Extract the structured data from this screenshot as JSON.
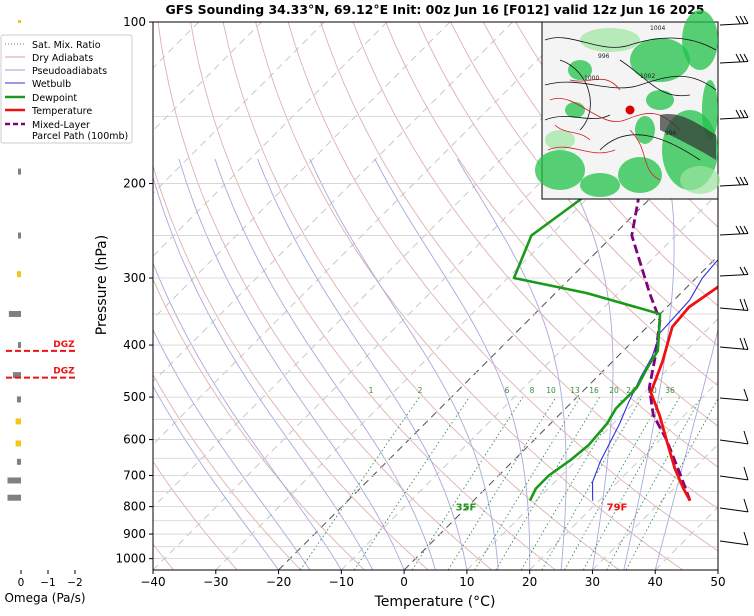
{
  "chart_data": {
    "type": "line",
    "title": "GFS Sounding 34.33°N, 69.12°E Init: 00z Jun 16 [F012] valid 12z Jun 16 2025",
    "xlabel": "Temperature (°C)",
    "ylabel": "Pressure (hPa)",
    "xlim": [
      -40,
      50
    ],
    "ylim": [
      1050,
      100
    ],
    "y_scale": "log",
    "x_ticks": [
      "−40",
      "−30",
      "−20",
      "−10",
      "0",
      "10",
      "20",
      "30",
      "40",
      "50"
    ],
    "y_ticks": [
      "100",
      "200",
      "300",
      "400",
      "500",
      "600",
      "700",
      "800",
      "900",
      "1000"
    ],
    "legend_position": "top-left",
    "legend": [
      {
        "name": "Sat. Mix. Ratio",
        "color": "#2e8b57",
        "style": "dotted"
      },
      {
        "name": "Dry Adiabats",
        "color": "#d9a0a0",
        "style": "solid"
      },
      {
        "name": "Pseudoadiabats",
        "color": "#a0a0d8",
        "style": "solid"
      },
      {
        "name": "Wetbulb",
        "color": "#3030e0",
        "style": "solid"
      },
      {
        "name": "Dewpoint",
        "color": "#1a9a1a",
        "style": "solid"
      },
      {
        "name": "Temperature",
        "color": "#ee1111",
        "style": "solid"
      },
      {
        "name": "Mixed-Layer\nParcel Path (100mb)",
        "color": "#800080",
        "style": "dashed"
      }
    ],
    "series": [
      {
        "name": "Temperature",
        "color": "#ee1111",
        "points": [
          [
            34.5,
            780
          ],
          [
            31.5,
            740
          ],
          [
            27,
            680
          ],
          [
            21,
            600
          ],
          [
            16,
            540
          ],
          [
            11,
            490
          ],
          [
            8,
            430
          ],
          [
            4,
            370
          ],
          [
            3.5,
            340
          ],
          [
            5,
            310
          ],
          [
            4,
            270
          ],
          [
            3,
            245
          ],
          [
            -1,
            215
          ],
          [
            -3,
            190
          ],
          [
            -6,
            165
          ],
          [
            -7,
            145
          ],
          [
            -7.5,
            100
          ]
        ]
      },
      {
        "name": "Dewpoint",
        "color": "#1a9a1a",
        "points": [
          [
            9,
            780
          ],
          [
            8,
            740
          ],
          [
            8,
            700
          ],
          [
            9,
            655
          ],
          [
            9.5,
            615
          ],
          [
            9,
            560
          ],
          [
            8,
            525
          ],
          [
            8,
            480
          ],
          [
            6.5,
            440
          ],
          [
            5.5,
            410
          ],
          [
            0,
            350
          ],
          [
            -15,
            320
          ],
          [
            -29,
            300
          ],
          [
            -33,
            250
          ],
          [
            -30,
            200
          ],
          [
            -28,
            160
          ],
          [
            -25,
            140
          ],
          [
            -19.5,
            100
          ]
        ]
      },
      {
        "name": "Wetbulb",
        "color": "#3030e0",
        "points": [
          [
            19,
            780
          ],
          [
            16,
            720
          ],
          [
            14,
            660
          ],
          [
            11,
            560
          ],
          [
            9,
            510
          ],
          [
            7,
            460
          ],
          [
            5.5,
            420
          ],
          [
            3,
            380
          ],
          [
            2.5,
            330
          ],
          [
            1,
            300
          ],
          [
            0,
            250
          ],
          [
            -3,
            205
          ],
          [
            -6,
            170
          ],
          [
            -7,
            145
          ],
          [
            -7,
            100
          ]
        ]
      },
      {
        "name": "Mixed-Layer Parcel Path (100mb)",
        "color": "#800080",
        "points": [
          [
            34.5,
            780
          ],
          [
            29,
            700
          ],
          [
            21,
            600
          ],
          [
            15,
            540
          ],
          [
            10,
            480
          ],
          [
            6,
            420
          ],
          [
            1,
            360
          ],
          [
            -5,
            320
          ],
          [
            -17,
            250
          ],
          [
            -27,
            180
          ],
          [
            -35,
            130
          ],
          [
            -40,
            100
          ]
        ]
      }
    ],
    "surface_labels": [
      {
        "text": "79F",
        "color": "#ee1111",
        "x": 34.5,
        "pressure": 800
      },
      {
        "text": "35F",
        "color": "#1a9a1a",
        "x": 9.5,
        "pressure": 800
      }
    ],
    "mixing_ratio_labels": [
      "1",
      "2",
      "6",
      "8",
      "10",
      "13",
      "16",
      "20",
      "24",
      "30",
      "36"
    ],
    "omega_panel": {
      "xlabel": "Omega (Pa/s)",
      "ticks": [
        "0",
        "−1",
        "−2"
      ],
      "dgz_labels": [
        {
          "text": "DGZ",
          "pressure": 410
        },
        {
          "text": "DGZ",
          "pressure": 460
        }
      ],
      "bars": [
        {
          "pressure": 190,
          "value": 0.1,
          "color": "gray"
        },
        {
          "pressure": 250,
          "value": 0.1,
          "color": "gray"
        },
        {
          "pressure": 295,
          "value": 0.15,
          "color": "gold"
        },
        {
          "pressure": 350,
          "value": 0.45,
          "color": "gray"
        },
        {
          "pressure": 400,
          "value": 0.1,
          "color": "gray"
        },
        {
          "pressure": 455,
          "value": 0.3,
          "color": "gray"
        },
        {
          "pressure": 505,
          "value": 0.15,
          "color": "gray"
        },
        {
          "pressure": 555,
          "value": 0.2,
          "color": "gold"
        },
        {
          "pressure": 610,
          "value": 0.2,
          "color": "gold"
        },
        {
          "pressure": 660,
          "value": 0.15,
          "color": "gray"
        },
        {
          "pressure": 715,
          "value": 0.5,
          "color": "gray"
        },
        {
          "pressure": 770,
          "value": 0.5,
          "color": "gray"
        }
      ]
    },
    "inset_map": {
      "contour_labels": [
        "1004",
        "1000",
        "996",
        "1002",
        "996"
      ]
    }
  }
}
